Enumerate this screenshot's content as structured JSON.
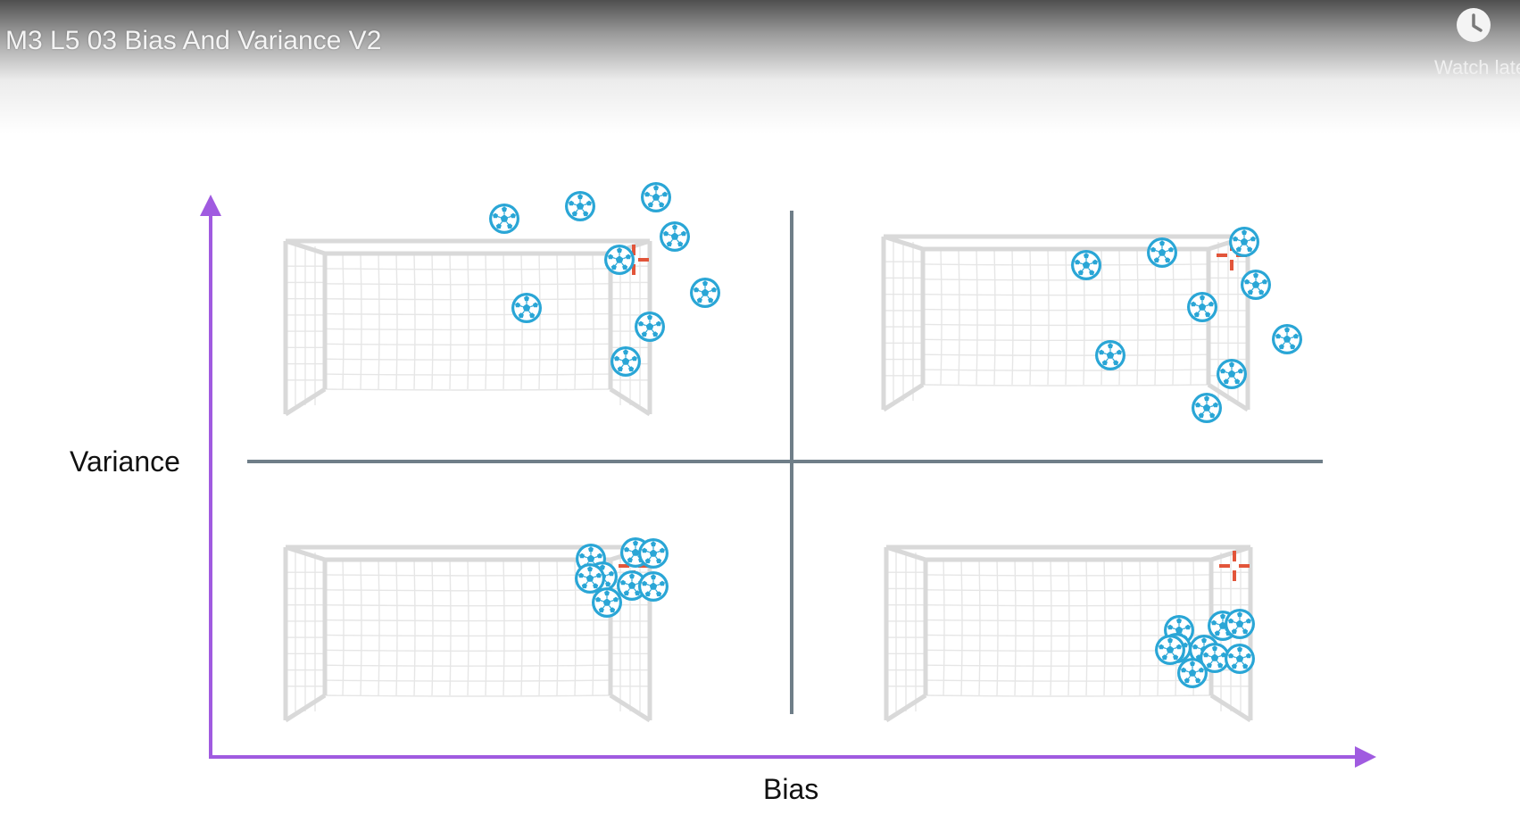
{
  "header": {
    "title": "M3 L5 03 Bias And Variance V2",
    "watch_later_label": "Watch later",
    "watch_later_icon": "clock-icon"
  },
  "slide": {
    "y_axis_label": "Variance",
    "x_axis_label": "Bias",
    "axis_color": "#a05be0",
    "divider_color": "#6f7e88",
    "ball_color": "#2aa6d6",
    "target_color": "#e2553a",
    "net_color": "#d9d9d9",
    "quadrants": [
      {
        "position": "top-left"
      },
      {
        "position": "top-right"
      },
      {
        "position": "bottom-left"
      },
      {
        "position": "bottom-right"
      }
    ]
  }
}
